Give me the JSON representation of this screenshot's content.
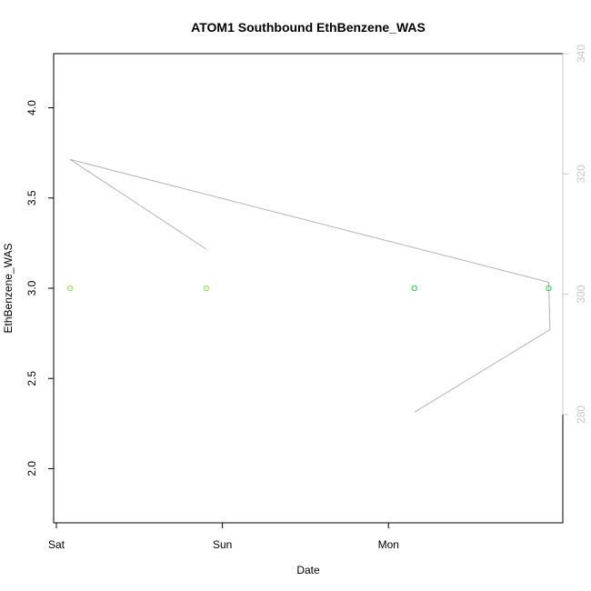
{
  "chart_data": {
    "type": "scatter",
    "title": "ATOM1 Southbound EthBenzene_WAS",
    "xlabel": "Date",
    "ylabel": "EthBenzene_WAS",
    "x_axis": {
      "type": "date",
      "range": [
        "Sat 00:00",
        "Mon 22:50"
      ],
      "ticks": [
        {
          "value": "Sat 00:00",
          "label": "Sat"
        },
        {
          "value": "Sun 00:00",
          "label": "Sun"
        },
        {
          "value": "Mon 00:00",
          "label": "Mon"
        }
      ]
    },
    "y_axis_left": {
      "range": [
        1.7,
        4.3
      ],
      "ticks": [
        2.0,
        2.5,
        3.0,
        3.5,
        4.0
      ],
      "tick_labels": [
        "2.0",
        "2.5",
        "3.0",
        "3.5",
        "4.0"
      ]
    },
    "y_axis_right": {
      "range": [
        262,
        340
      ],
      "ticks": [
        280,
        300,
        320,
        340
      ],
      "tick_labels": [
        "280",
        "300",
        "320",
        "340"
      ],
      "color": "#c8c8c8"
    },
    "points": {
      "axis": "left",
      "marker": "open-circle",
      "values": [
        {
          "x": "Sat 02:00",
          "y": 3.0,
          "color": "#88ee44"
        },
        {
          "x": "Sat 21:40",
          "y": 3.0,
          "color": "#88ee44"
        },
        {
          "x": "Mon 03:45",
          "y": 3.0,
          "color": "#22dd44"
        },
        {
          "x": "Mon 23:10",
          "y": 3.0,
          "color": "#22dd44"
        }
      ]
    },
    "line": {
      "axis": "right",
      "color": "#b4b4b4",
      "values": [
        {
          "x": "Sat 21:40",
          "y": 307.5
        },
        {
          "x": "Sat 02:00",
          "y": 322.4
        },
        {
          "x": "Mon 23:10",
          "y": 302.0
        },
        {
          "x": "Mon 23:20",
          "y": 294.1
        },
        {
          "x": "Mon 03:45",
          "y": 280.4
        }
      ]
    },
    "grid": false,
    "legend": "none"
  }
}
